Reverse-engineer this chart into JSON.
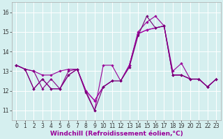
{
  "title": "",
  "xlabel": "Windchill (Refroidissement éolien,°C)",
  "ylabel": "",
  "background_color": "#d5efef",
  "grid_color": "#ffffff",
  "line_color": "#990099",
  "xlim": [
    -0.5,
    23.5
  ],
  "ylim": [
    10.5,
    16.5
  ],
  "yticks": [
    11,
    12,
    13,
    14,
    15,
    16
  ],
  "xticks": [
    0,
    1,
    2,
    3,
    4,
    5,
    6,
    7,
    8,
    9,
    10,
    11,
    12,
    13,
    14,
    15,
    16,
    17,
    18,
    19,
    20,
    21,
    22,
    23
  ],
  "lines": [
    {
      "x": [
        0,
        1,
        2,
        3,
        4,
        5,
        6,
        7,
        8,
        9,
        10,
        11,
        12,
        13,
        14,
        15,
        16,
        17,
        18,
        19,
        20,
        21,
        22,
        23
      ],
      "y": [
        13.3,
        13.1,
        13.0,
        12.8,
        12.8,
        13.0,
        13.1,
        13.1,
        12.0,
        11.0,
        13.3,
        13.3,
        12.5,
        13.3,
        15.0,
        15.5,
        15.8,
        15.3,
        13.0,
        13.4,
        12.6,
        12.6,
        12.2,
        12.6
      ],
      "color": "#990099",
      "lw": 0.8,
      "marker": "D",
      "markersize": 1.8
    },
    {
      "x": [
        0,
        1,
        2,
        3,
        4,
        5,
        6,
        7,
        8,
        9,
        10,
        11,
        12,
        13,
        14,
        15,
        16,
        17,
        18,
        19,
        20,
        21,
        22,
        23
      ],
      "y": [
        13.3,
        13.1,
        13.0,
        12.1,
        12.6,
        12.1,
        13.0,
        13.1,
        12.0,
        11.5,
        12.2,
        12.5,
        12.5,
        13.3,
        14.9,
        15.1,
        15.2,
        15.3,
        12.8,
        12.8,
        12.6,
        12.6,
        12.2,
        12.6
      ],
      "color": "#880088",
      "lw": 0.8,
      "marker": "D",
      "markersize": 1.8
    },
    {
      "x": [
        0,
        1,
        2,
        3,
        4,
        5,
        6,
        7,
        8,
        9,
        10,
        11,
        12,
        13,
        14,
        15,
        16,
        17,
        18,
        19,
        20,
        21,
        22,
        23
      ],
      "y": [
        13.3,
        13.1,
        12.1,
        12.6,
        12.1,
        12.1,
        12.8,
        13.1,
        12.0,
        11.5,
        12.2,
        12.5,
        12.5,
        13.3,
        14.9,
        15.1,
        15.2,
        15.3,
        12.8,
        12.8,
        12.6,
        12.6,
        12.2,
        12.6
      ],
      "color": "#aa00aa",
      "lw": 0.8,
      "marker": "D",
      "markersize": 1.8
    },
    {
      "x": [
        0,
        1,
        2,
        3,
        4,
        5,
        6,
        7,
        8,
        9,
        10,
        11,
        12,
        13,
        14,
        15,
        16,
        17,
        18,
        19,
        20,
        21,
        22,
        23
      ],
      "y": [
        13.3,
        13.1,
        12.1,
        12.6,
        12.1,
        12.1,
        12.8,
        13.1,
        11.9,
        11.0,
        12.2,
        12.5,
        12.5,
        13.2,
        14.8,
        15.8,
        15.2,
        15.3,
        12.8,
        12.8,
        12.6,
        12.6,
        12.2,
        12.6
      ],
      "color": "#770077",
      "lw": 0.8,
      "marker": "D",
      "markersize": 1.8
    }
  ],
  "xlabel_fontsize": 6.5,
  "tick_fontsize": 5.5
}
